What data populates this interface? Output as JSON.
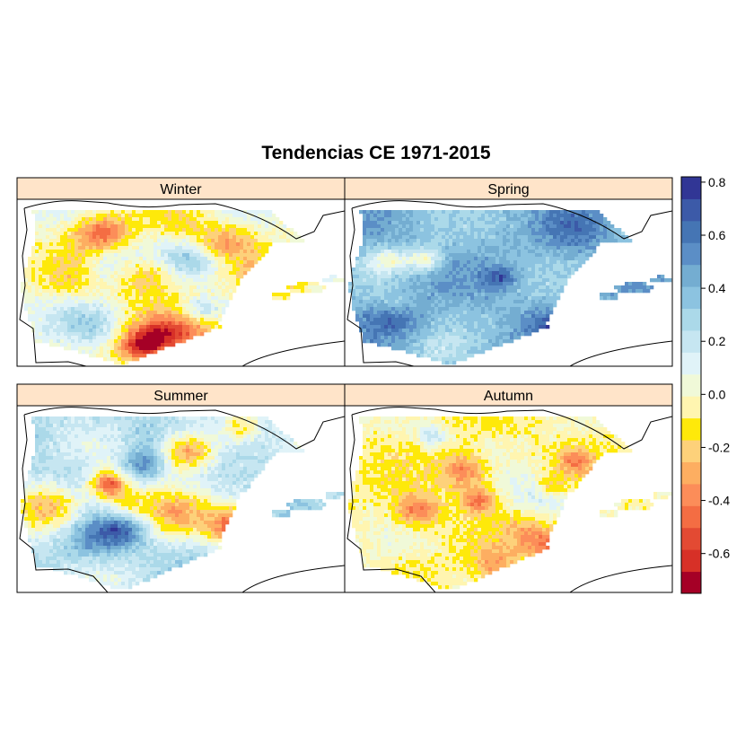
{
  "title": "Tendencias CE 1971-2015",
  "panels": [
    {
      "label": "Winter",
      "pattern": "mixed-negative"
    },
    {
      "label": "Spring",
      "pattern": "positive"
    },
    {
      "label": "Summer",
      "pattern": "mixed"
    },
    {
      "label": "Autumn",
      "pattern": "slightly-negative"
    }
  ],
  "legend": {
    "ticks": [
      "0.8",
      "0.6",
      "0.4",
      "0.2",
      "0.0",
      "-0.2",
      "-0.4",
      "-0.6"
    ],
    "tick_values": [
      0.8,
      0.6,
      0.4,
      0.2,
      0.0,
      -0.2,
      -0.4,
      -0.6
    ],
    "range": [
      -0.75,
      0.82
    ],
    "colors": [
      "#a50026",
      "#d73027",
      "#e34a33",
      "#f46d43",
      "#fc8d59",
      "#fdae61",
      "#fdd17a",
      "#fee90a",
      "#fff5b0",
      "#f0f9d8",
      "#e0f3f8",
      "#c6e6f1",
      "#abd9e9",
      "#8cc3e0",
      "#74add1",
      "#5b8ec6",
      "#4575b4",
      "#3c5aa8",
      "#313695"
    ],
    "position": "right"
  },
  "colors": {
    "strip": "#ffe4c9",
    "border": "#000000",
    "no_data": "#ffffff"
  }
}
